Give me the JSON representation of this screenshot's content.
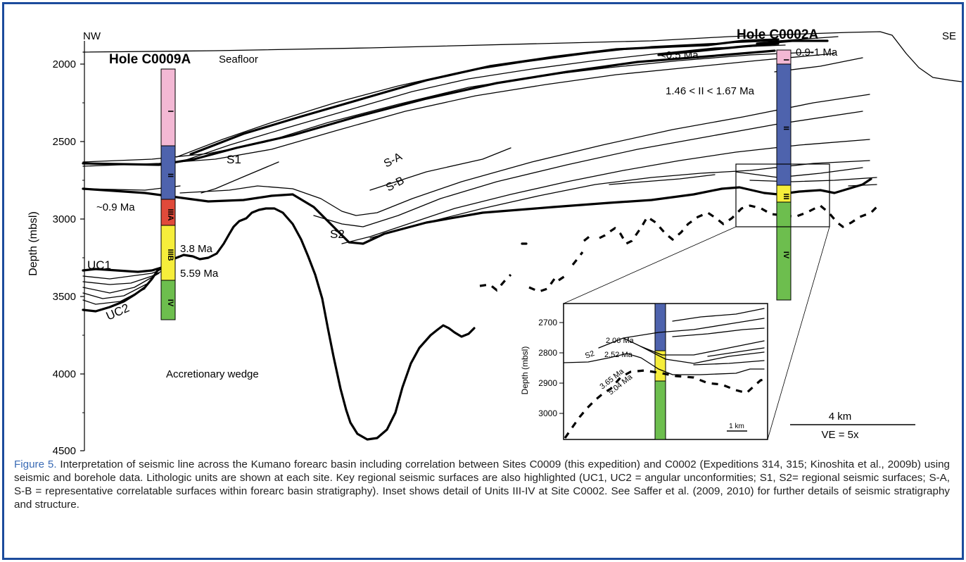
{
  "colors": {
    "border": "#1c4c9c",
    "caption_label": "#3a6bb5",
    "unit_I": "#f3b8d4",
    "unit_II": "#4e63ad",
    "unit_IIIA": "#e04a3a",
    "unit_IIIB": "#f6ee3b",
    "unit_IV": "#6dbe4e"
  },
  "labels": {
    "nw": "NW",
    "se": "SE",
    "hole_c0009": "Hole C0009A",
    "hole_c0002": "Hole C0002A",
    "seafloor": "Seafloor",
    "depth_axis": "Depth (mbsl)",
    "accretionary_wedge": "Accretionary wedge",
    "scale_km": "4 km",
    "ve": "VE = 5x",
    "inset_scale": "1 km",
    "inset_axis": "Depth (mbsl)"
  },
  "depth_ticks": [
    "2000",
    "2500",
    "3000",
    "3500",
    "4000",
    "4500"
  ],
  "inset_ticks": [
    "2700",
    "2800",
    "2900",
    "3000"
  ],
  "surfaces": {
    "s1": "S1",
    "s2": "S2",
    "sa": "S-A",
    "sb": "S-B",
    "uc1": "UC1",
    "uc2": "UC2"
  },
  "ages": {
    "a1": "<0.5 Ma",
    "a2": "0.9-1 Ma",
    "a3": "1.46 < II < 1.67 Ma",
    "a4": "~0.9 Ma",
    "a5": "3.8 Ma",
    "a6": "5.59 Ma"
  },
  "inset_ages": {
    "i1": "2.06 Ma",
    "i2": "2.52 Ma",
    "i3": "3.65 Ma",
    "i4": "5.04 Ma",
    "s2": "S2"
  },
  "units_c0009": [
    "I",
    "II",
    "IIIA",
    "IIIB",
    "IV"
  ],
  "units_c0002": [
    "I",
    "II",
    "III",
    "IV"
  ],
  "caption": {
    "label": "Figure 5.",
    "text": " Interpretation of seismic line across the Kumano forearc basin including correlation between Sites C0009 (this expedition) and C0002 (Expeditions 314, 315; Kinoshita et al., 2009b) using seismic and borehole data. Lithologic units are shown at each site. Key regional seismic surfaces are also highlighted (UC1, UC2 = angular unconformities; S1, S2= regional seismic surfaces; S-A, S-B = representative correlatable surfaces within forearc basin stratigraphy). Inset shows detail of Units III-IV at Site C0002. See Saffer et al. (2009, 2010) for further details of seismic stratigraphy and structure."
  }
}
